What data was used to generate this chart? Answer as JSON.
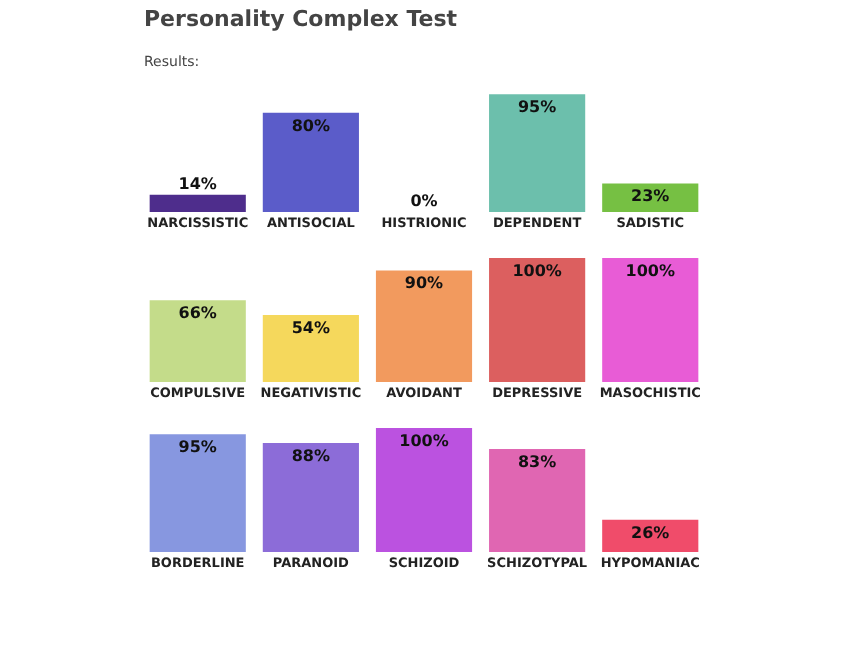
{
  "chart_data": [
    {
      "type": "bar",
      "title": "Personality Complex Test",
      "subtitle": "Results:",
      "categories": [
        "NARCISSISTIC",
        "ANTISOCIAL",
        "HISTRIONIC",
        "DEPENDENT",
        "SADISTIC"
      ],
      "values": [
        14,
        80,
        0,
        95,
        23
      ],
      "value_labels": [
        "14%",
        "80%",
        "0%",
        "95%",
        "23%"
      ],
      "colors": [
        "#4e2d8c",
        "#5b5cc9",
        "#a8dcef",
        "#6cbfac",
        "#76c043"
      ],
      "ylim": [
        0,
        100
      ],
      "tick_labels": "x"
    },
    {
      "type": "bar",
      "categories": [
        "COMPULSIVE",
        "NEGATIVISTIC",
        "AVOIDANT",
        "DEPRESSIVE",
        "MASOCHISTIC"
      ],
      "values": [
        66,
        54,
        90,
        100,
        100
      ],
      "value_labels": [
        "66%",
        "54%",
        "90%",
        "100%",
        "100%"
      ],
      "colors": [
        "#c4dc8a",
        "#f5d85c",
        "#f29a5e",
        "#dc5f5f",
        "#e85cd6"
      ],
      "ylim": [
        0,
        100
      ],
      "tick_labels": "x"
    },
    {
      "type": "bar",
      "categories": [
        "BORDERLINE",
        "PARANOID",
        "SCHIZOID",
        "SCHIZOTYPAL",
        "HYPOMANIAC"
      ],
      "values": [
        95,
        88,
        100,
        83,
        26
      ],
      "value_labels": [
        "95%",
        "88%",
        "100%",
        "83%",
        "26%"
      ],
      "colors": [
        "#8797e0",
        "#8c6cd8",
        "#bb52e0",
        "#e066b2",
        "#f04c6a"
      ],
      "ylim": [
        0,
        100
      ],
      "tick_labels": "x"
    }
  ]
}
